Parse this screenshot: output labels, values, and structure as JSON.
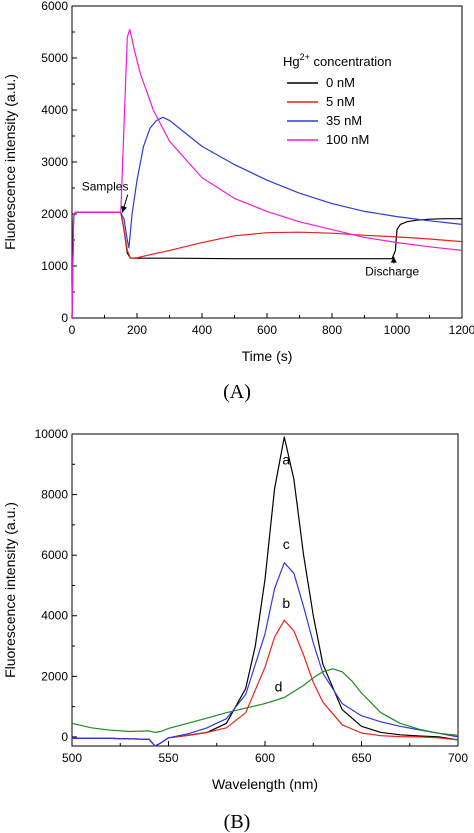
{
  "chart_data": [
    {
      "type": "line",
      "panel_label": "(A)",
      "xlabel": "Time (s)",
      "ylabel": "Fluorescence intensity (a.u.)",
      "xlim": [
        0,
        1200
      ],
      "ylim": [
        0,
        6000
      ],
      "xticks": [
        0,
        200,
        400,
        600,
        800,
        1000,
        1200
      ],
      "yticks": [
        0,
        1000,
        2000,
        3000,
        4000,
        5000,
        6000
      ],
      "grid": false,
      "legend": {
        "title_base": "Hg",
        "title_sup": "2+",
        "title_rest": " concentration",
        "placement": "top-right"
      },
      "annotations": [
        {
          "text": "Samples",
          "x": 155,
          "y": 2030,
          "text_x": 30,
          "text_y": 2450
        },
        {
          "text": "Discharge",
          "x": 990,
          "y": 1180,
          "text_x": 985,
          "text_y": 820
        }
      ],
      "series": [
        {
          "name": "0 nM",
          "color": "#000000",
          "x": [
            0,
            5,
            10,
            150,
            160,
            170,
            180,
            200,
            300,
            500,
            700,
            900,
            985,
            995,
            1000,
            1010,
            1030,
            1060,
            1100,
            1150,
            1200
          ],
          "y": [
            0,
            1950,
            2030,
            2030,
            1700,
            1250,
            1150,
            1150,
            1150,
            1140,
            1140,
            1140,
            1140,
            1300,
            1700,
            1800,
            1850,
            1880,
            1900,
            1910,
            1910
          ]
        },
        {
          "name": "5 nM",
          "color": "#e8221b",
          "x": [
            0,
            5,
            10,
            150,
            160,
            170,
            180,
            200,
            300,
            400,
            500,
            600,
            700,
            800,
            900,
            1000,
            1100,
            1200
          ],
          "y": [
            0,
            1950,
            2030,
            2030,
            1700,
            1300,
            1150,
            1160,
            1300,
            1450,
            1580,
            1640,
            1650,
            1630,
            1590,
            1560,
            1520,
            1470
          ]
        },
        {
          "name": "35 nM",
          "color": "#2e3bd8",
          "x": [
            0,
            5,
            10,
            150,
            160,
            170,
            175,
            185,
            200,
            220,
            240,
            260,
            280,
            300,
            350,
            400,
            500,
            600,
            700,
            800,
            900,
            1000,
            1100,
            1200
          ],
          "y": [
            0,
            1950,
            2030,
            2030,
            1900,
            1500,
            1350,
            2000,
            2650,
            3300,
            3650,
            3800,
            3860,
            3800,
            3550,
            3300,
            2950,
            2650,
            2400,
            2200,
            2050,
            1950,
            1870,
            1800
          ]
        },
        {
          "name": "100 nM",
          "color": "#ee1ddc",
          "x": [
            0,
            5,
            10,
            150,
            160,
            170,
            178,
            190,
            210,
            250,
            300,
            400,
            500,
            600,
            700,
            800,
            900,
            1000,
            1100,
            1200
          ],
          "y": [
            0,
            1950,
            2030,
            2030,
            3700,
            5400,
            5550,
            5200,
            4700,
            4000,
            3400,
            2700,
            2300,
            2050,
            1850,
            1700,
            1550,
            1450,
            1370,
            1300
          ]
        }
      ]
    },
    {
      "type": "line",
      "panel_label": "(B)",
      "xlabel": "Wavelength (nm)",
      "ylabel": "Fluorescence intensity (a.u.)",
      "xlim": [
        500,
        700
      ],
      "ylim": [
        -300,
        10000
      ],
      "xticks": [
        500,
        550,
        600,
        650,
        700
      ],
      "yticks": [
        0,
        2000,
        4000,
        6000,
        8000,
        10000
      ],
      "grid": false,
      "series": [
        {
          "name": "a",
          "color": "#000000",
          "x": [
            500,
            520,
            540,
            543,
            546,
            550,
            560,
            570,
            580,
            590,
            595,
            600,
            605,
            610,
            615,
            620,
            625,
            630,
            640,
            650,
            660,
            670,
            680,
            690,
            700
          ],
          "y": [
            -50,
            -50,
            -80,
            -300,
            -200,
            -30,
            50,
            150,
            450,
            1600,
            3000,
            5200,
            8200,
            9900,
            8500,
            6000,
            4000,
            2400,
            900,
            350,
            150,
            70,
            30,
            0,
            -100
          ],
          "label_text": "a",
          "label_x": 611,
          "label_y": 9000
        },
        {
          "name": "b",
          "color": "#e8221b",
          "x": [
            500,
            520,
            540,
            543,
            546,
            550,
            560,
            570,
            580,
            590,
            600,
            605,
            610,
            615,
            620,
            625,
            630,
            640,
            650,
            660,
            670,
            680,
            690,
            700
          ],
          "y": [
            -50,
            -50,
            -80,
            -300,
            -200,
            -30,
            50,
            150,
            300,
            800,
            2300,
            3300,
            3850,
            3500,
            2700,
            1800,
            1150,
            400,
            130,
            40,
            10,
            0,
            -30,
            -100
          ],
          "label_text": "b",
          "label_x": 611,
          "label_y": 4250
        },
        {
          "name": "c",
          "color": "#2e3bd8",
          "x": [
            500,
            520,
            540,
            543,
            546,
            550,
            560,
            570,
            580,
            590,
            600,
            605,
            610,
            615,
            620,
            625,
            630,
            640,
            650,
            660,
            670,
            680,
            690,
            700
          ],
          "y": [
            -50,
            -50,
            -80,
            -300,
            -200,
            -30,
            100,
            300,
            600,
            1400,
            3400,
            4900,
            5750,
            5400,
            4300,
            3100,
            2100,
            1100,
            700,
            500,
            350,
            230,
            120,
            0
          ],
          "label_text": "c",
          "label_x": 611,
          "label_y": 6200
        },
        {
          "name": "d",
          "color": "#1f8a1f",
          "x": [
            500,
            510,
            520,
            530,
            540,
            543,
            546,
            550,
            560,
            570,
            580,
            590,
            600,
            610,
            620,
            625,
            630,
            635,
            640,
            645,
            650,
            660,
            670,
            680,
            690,
            700
          ],
          "y": [
            450,
            300,
            220,
            180,
            200,
            150,
            180,
            280,
            450,
            620,
            800,
            950,
            1100,
            1300,
            1700,
            1950,
            2150,
            2250,
            2150,
            1850,
            1450,
            800,
            450,
            250,
            120,
            50
          ],
          "label_text": "d",
          "label_x": 607,
          "label_y": 1500
        }
      ]
    }
  ]
}
